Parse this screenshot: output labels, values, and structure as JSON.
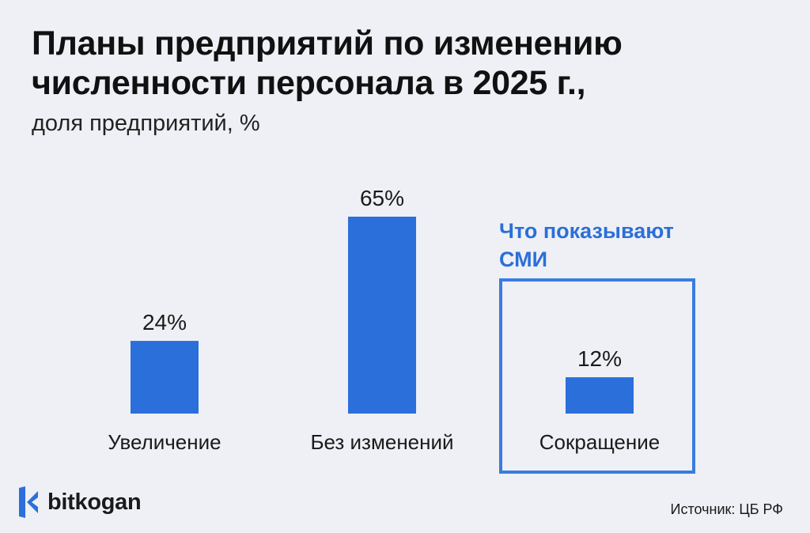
{
  "title_lines": [
    "Планы предприятий по изменению",
    "численности персонала в 2025 г.,"
  ],
  "subtitle": "доля предприятий, %",
  "highlight": {
    "caption_lines": [
      "Что показывают",
      "СМИ"
    ],
    "category": "Сокращение",
    "color": "#3a7be0"
  },
  "brand": {
    "name": "bitkogan",
    "icon": "bitkogan-logo-icon"
  },
  "source": "Источник: ЦБ РФ",
  "colors": {
    "bar": "#2b6fdb",
    "background": "#eef0f5",
    "accent": "#2b6fd8"
  },
  "chart_data": {
    "type": "bar",
    "title": "Планы предприятий по изменению численности персонала в 2025 г.",
    "subtitle": "доля предприятий, %",
    "categories": [
      "Увеличение",
      "Без изменений",
      "Сокращение"
    ],
    "values": [
      24,
      65,
      12
    ],
    "value_labels": [
      "24%",
      "65%",
      "12%"
    ],
    "ylim": [
      0,
      65
    ],
    "grid": false,
    "legend": "none"
  }
}
